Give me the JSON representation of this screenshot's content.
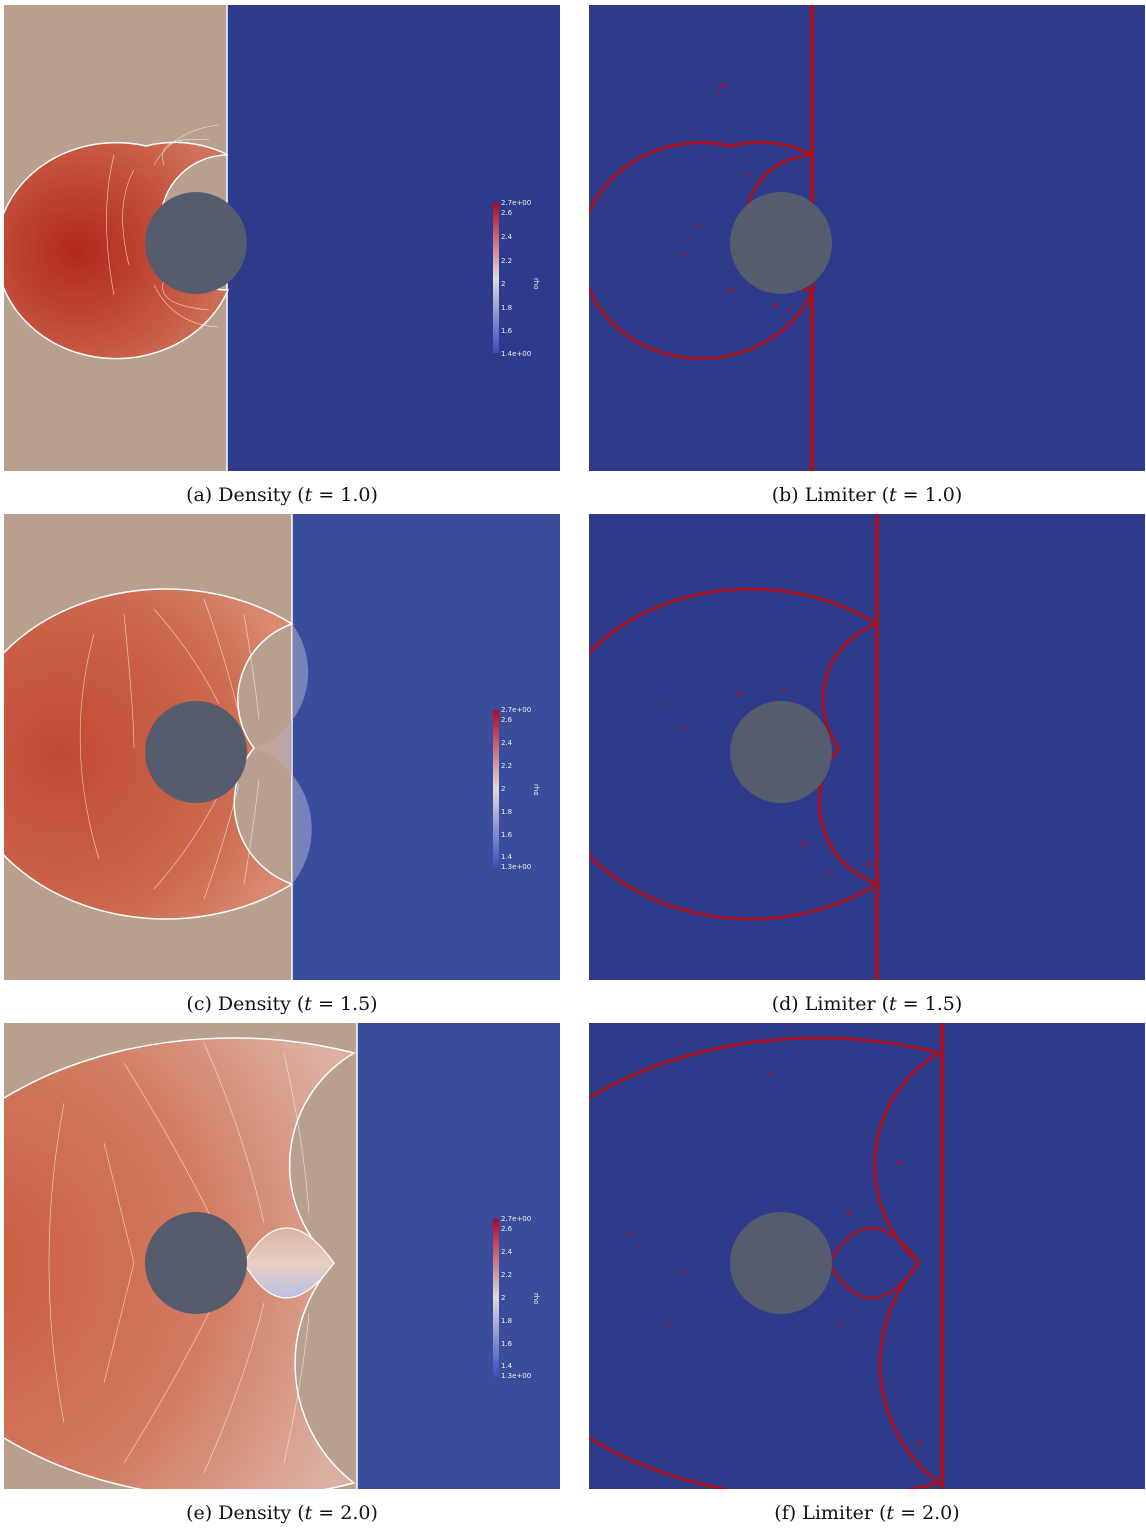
{
  "captions": {
    "a": {
      "label": "(a)",
      "text": "Density",
      "time": "1.0"
    },
    "b": {
      "label": "(b)",
      "text": "Limiter",
      "time": "1.0"
    },
    "c": {
      "label": "(c)",
      "text": "Density",
      "time": "1.5"
    },
    "d": {
      "label": "(d)",
      "text": "Limiter",
      "time": "1.5"
    },
    "e": {
      "label": "(e)",
      "text": "Density",
      "time": "2.0"
    },
    "f": {
      "label": "(f)",
      "text": "Limiter",
      "time": "2.0"
    }
  },
  "time_symbol": "t",
  "colorbars": {
    "a": {
      "field": "rho",
      "max": "2.7e+00",
      "min": "1.4e+00",
      "ticks": [
        "2.6",
        "2.4",
        "2.2",
        "2",
        "1.8",
        "1.6"
      ]
    },
    "c": {
      "field": "rho",
      "max": "2.7e+00",
      "min": "1.3e+00",
      "ticks": [
        "2.6",
        "2.4",
        "2.2",
        "2",
        "1.8",
        "1.6",
        "1.4"
      ]
    },
    "e": {
      "field": "rho",
      "max": "2.7e+00",
      "min": "1.3e+00",
      "ticks": [
        "2.6",
        "2.4",
        "2.2",
        "2",
        "1.8",
        "1.6",
        "1.4"
      ]
    }
  },
  "colors": {
    "background_blue": "#2e3a8a",
    "preshock_blue_late": "#3a4d9b",
    "postshock_tan": "#b9a08e",
    "cylinder": "#555c6e",
    "limiter_red": "#a8101e",
    "high_density": "#b53a2b"
  }
}
